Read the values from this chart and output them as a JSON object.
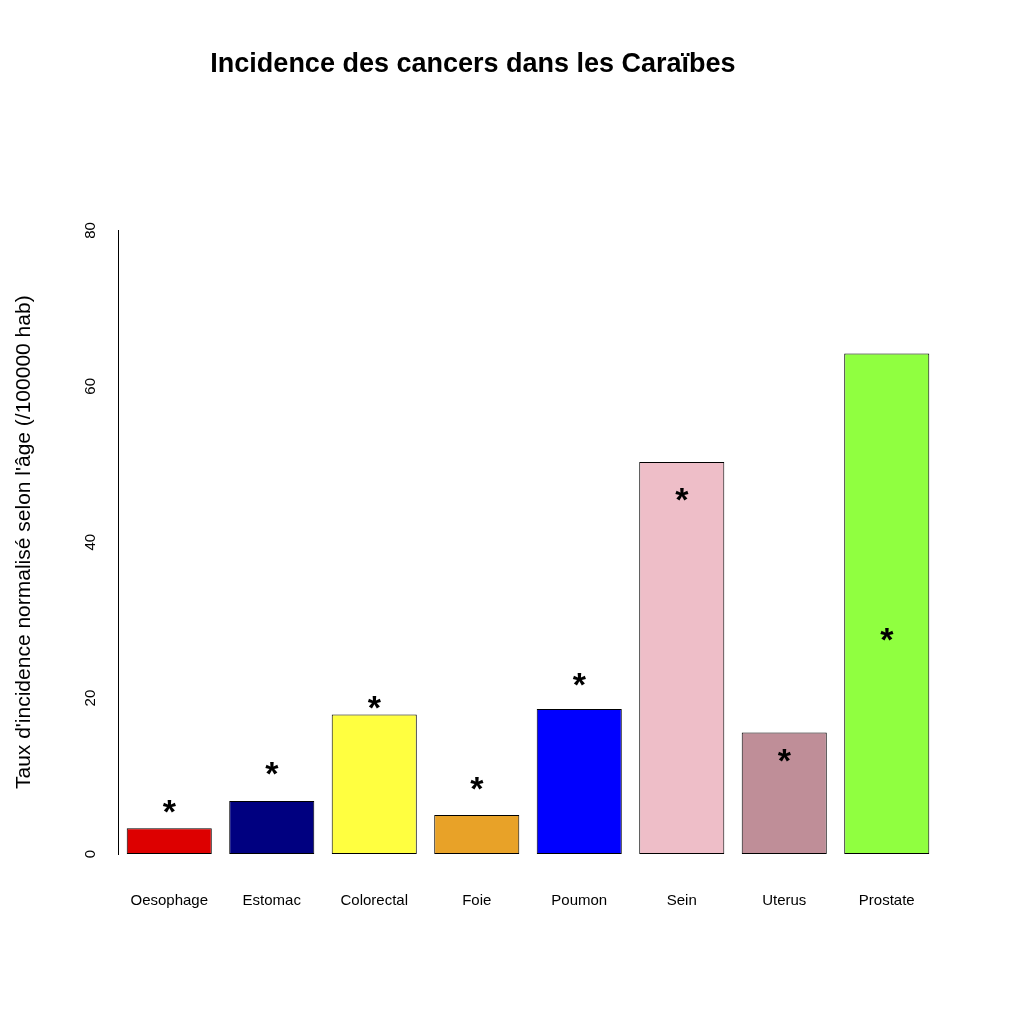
{
  "chart_data": {
    "type": "bar",
    "title": "Incidence des cancers dans les Caraïbes",
    "ylabel": "Taux d'incidence normalisé selon l'âge (/100000 hab)",
    "categories": [
      "Oesophage",
      "Estomac",
      "Colorectal",
      "Foie",
      "Poumon",
      "Sein",
      "Uterus",
      "Prostate"
    ],
    "values": [
      3.3,
      6.8,
      17.9,
      5.0,
      18.6,
      50.3,
      15.6,
      64.2
    ],
    "colors": [
      "#dd0000",
      "#000080",
      "#ffff40",
      "#e8a228",
      "#0000ff",
      "#eebec8",
      "#bf8e98",
      "#90ff40"
    ],
    "ylim": [
      0,
      80
    ],
    "yticks": [
      0,
      20,
      40,
      60,
      80
    ],
    "grid": false,
    "legend": false,
    "annotations": [
      "*",
      "*",
      "*",
      "*",
      "*",
      "*",
      "*",
      "*"
    ]
  }
}
